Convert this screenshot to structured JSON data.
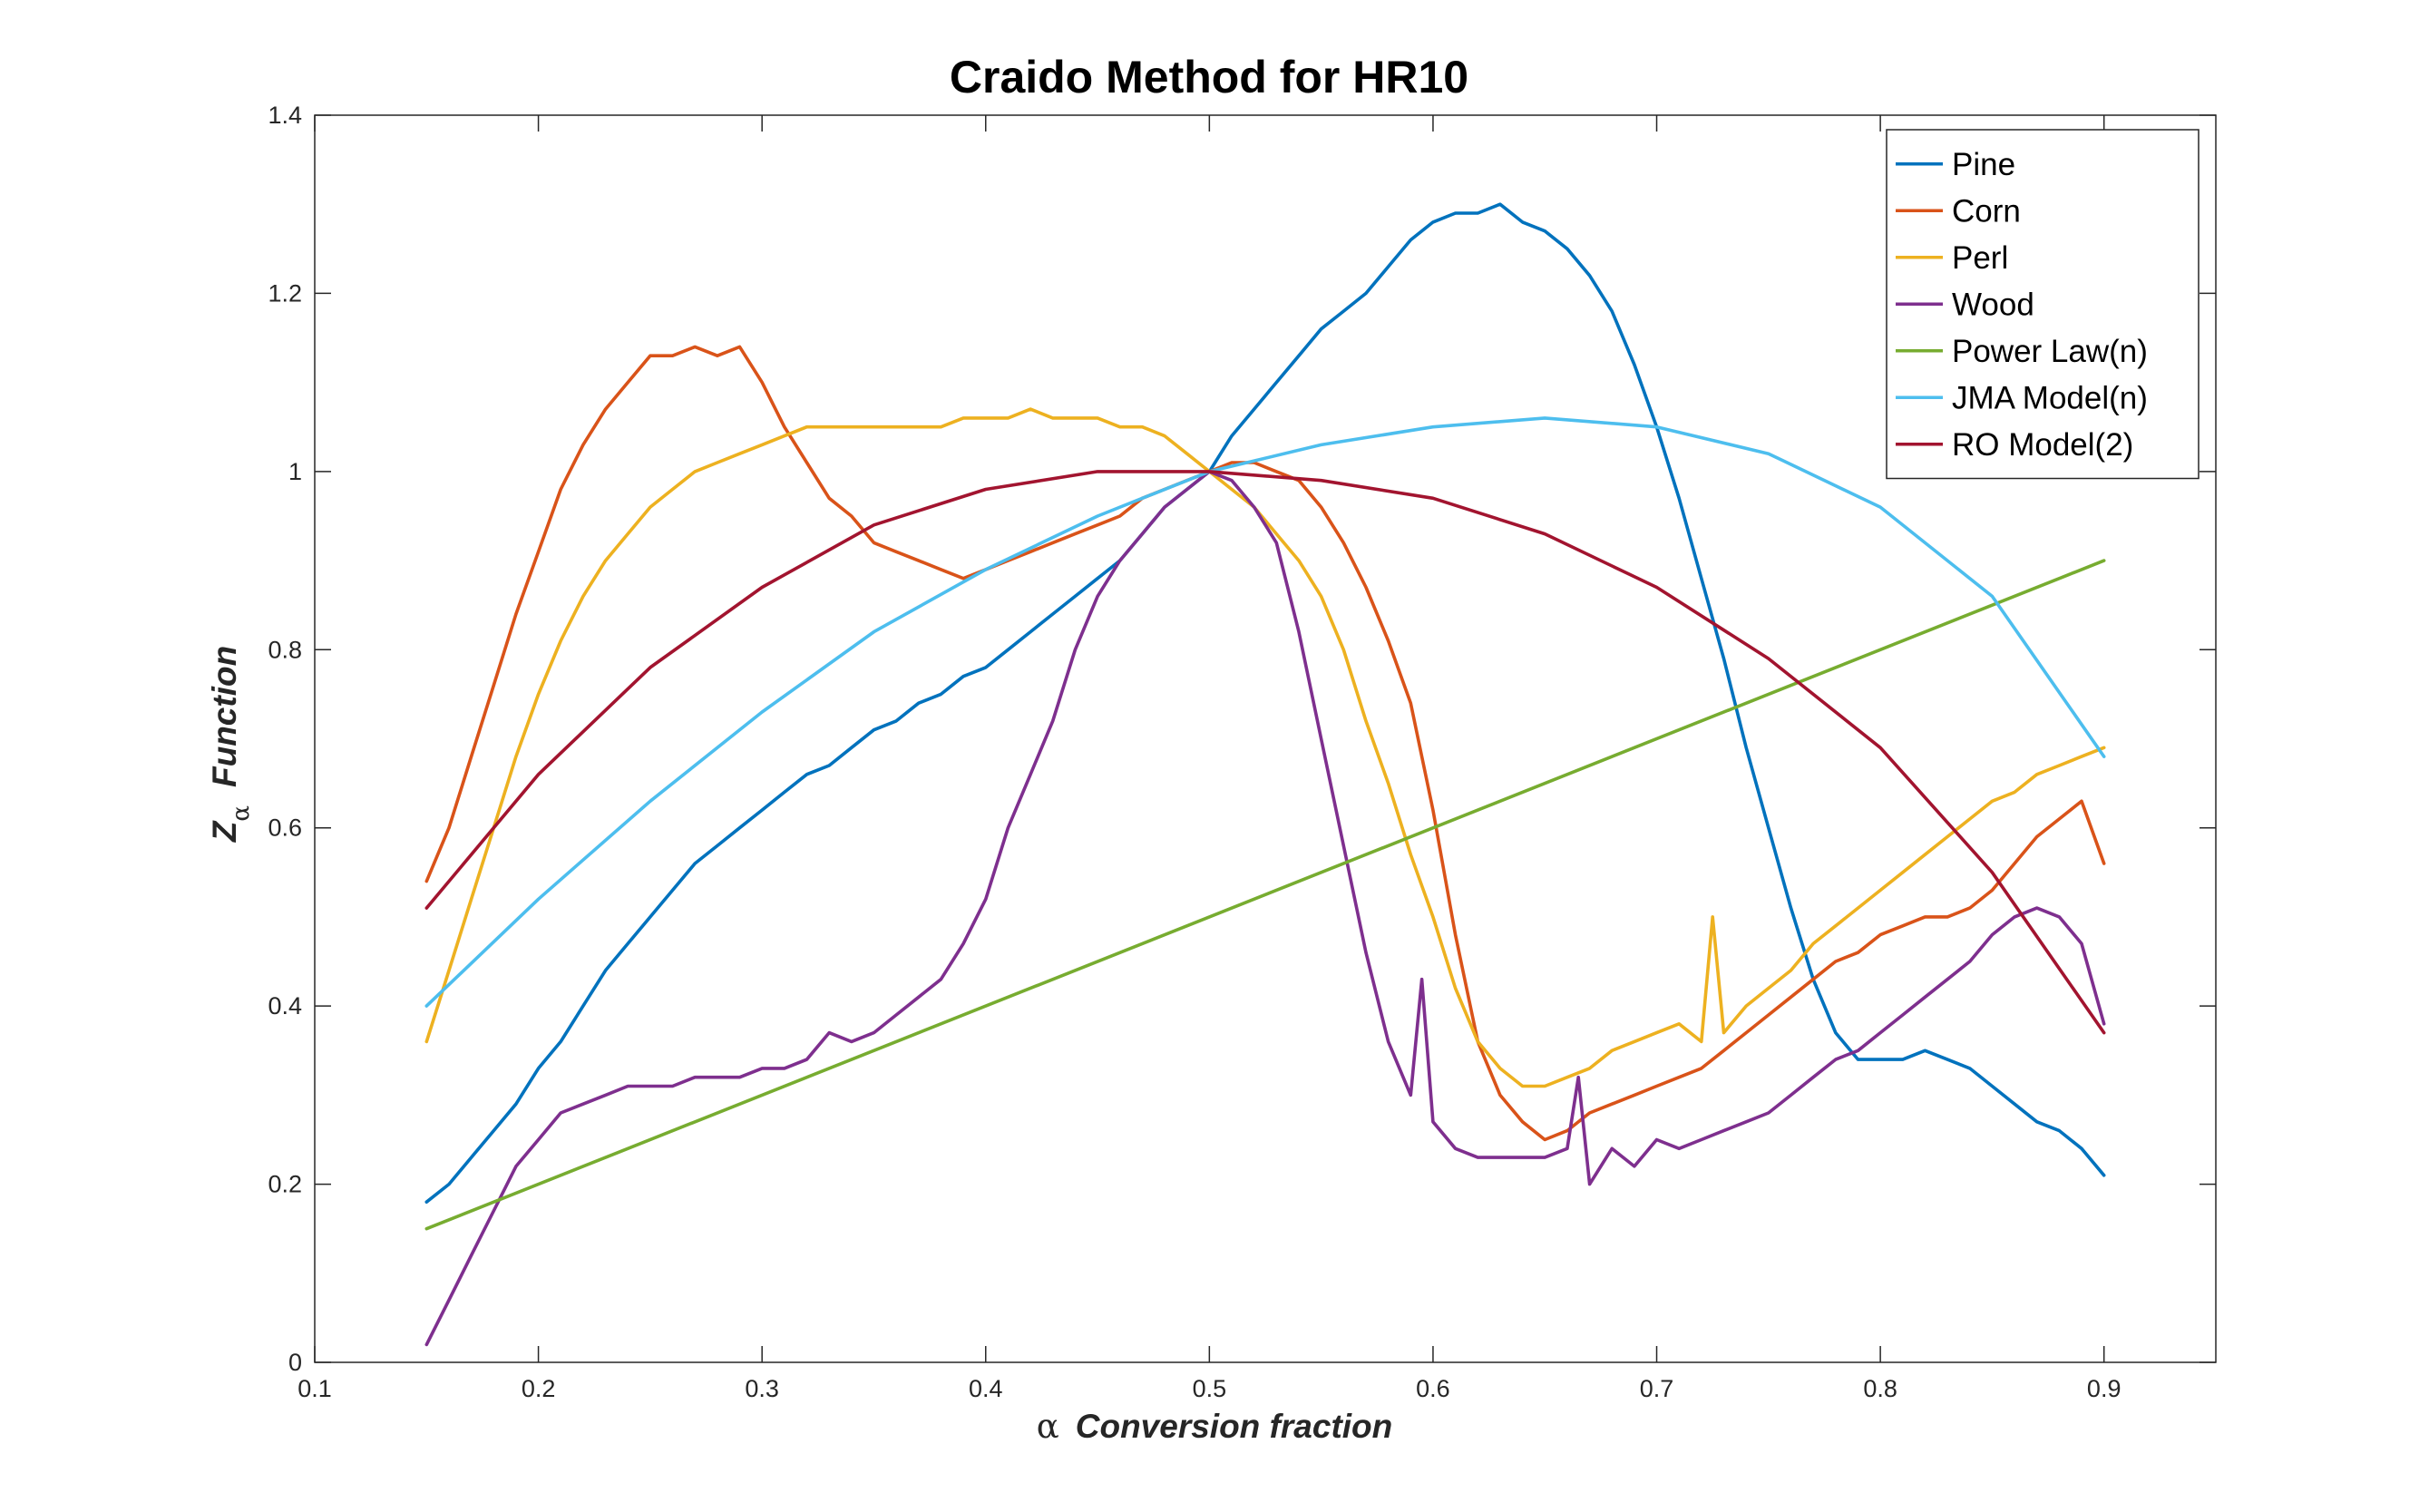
{
  "chart_data": {
    "type": "line",
    "title": "Craido Method for HR10",
    "xlabel": {
      "symbol": "α",
      "text": "Conversion fraction"
    },
    "ylabel": {
      "symbol": "Z",
      "subscript": "α",
      "text": "Function"
    },
    "xlim": [
      0.1,
      0.95
    ],
    "ylim": [
      0,
      1.4
    ],
    "xticks": [
      0.1,
      0.2,
      0.3,
      0.4,
      0.5,
      0.6,
      0.7,
      0.8,
      0.9
    ],
    "xtick_labels": [
      "0.1",
      "0.2",
      "0.3",
      "0.4",
      "0.5",
      "0.6",
      "0.7",
      "0.8",
      "0.9"
    ],
    "yticks": [
      0,
      0.2,
      0.4,
      0.6,
      0.8,
      1,
      1.2,
      1.4
    ],
    "ytick_labels": [
      "0",
      "0.2",
      "0.4",
      "0.6",
      "0.8",
      "1",
      "1.2",
      "1.4"
    ],
    "grid": false,
    "legend_position": "top-right",
    "series": [
      {
        "name": "Pine",
        "color": "#0072BD",
        "x": [
          0.15,
          0.16,
          0.17,
          0.18,
          0.19,
          0.2,
          0.21,
          0.22,
          0.23,
          0.24,
          0.25,
          0.26,
          0.27,
          0.28,
          0.29,
          0.3,
          0.31,
          0.32,
          0.33,
          0.34,
          0.35,
          0.36,
          0.37,
          0.38,
          0.39,
          0.4,
          0.41,
          0.42,
          0.43,
          0.44,
          0.45,
          0.46,
          0.47,
          0.48,
          0.49,
          0.5,
          0.51,
          0.52,
          0.53,
          0.54,
          0.55,
          0.56,
          0.57,
          0.58,
          0.59,
          0.6,
          0.61,
          0.62,
          0.63,
          0.64,
          0.65,
          0.66,
          0.67,
          0.68,
          0.69,
          0.7,
          0.71,
          0.72,
          0.73,
          0.74,
          0.75,
          0.76,
          0.77,
          0.78,
          0.79,
          0.8,
          0.81,
          0.82,
          0.83,
          0.84,
          0.85,
          0.86,
          0.87,
          0.88,
          0.89,
          0.9
        ],
        "y": [
          0.18,
          0.2,
          0.23,
          0.26,
          0.29,
          0.33,
          0.36,
          0.4,
          0.44,
          0.47,
          0.5,
          0.53,
          0.56,
          0.58,
          0.6,
          0.62,
          0.64,
          0.66,
          0.67,
          0.69,
          0.71,
          0.72,
          0.74,
          0.75,
          0.77,
          0.78,
          0.8,
          0.82,
          0.84,
          0.86,
          0.88,
          0.9,
          0.93,
          0.96,
          0.98,
          1.0,
          1.04,
          1.07,
          1.1,
          1.13,
          1.16,
          1.18,
          1.2,
          1.23,
          1.26,
          1.28,
          1.29,
          1.29,
          1.3,
          1.28,
          1.27,
          1.25,
          1.22,
          1.18,
          1.12,
          1.05,
          0.97,
          0.88,
          0.79,
          0.69,
          0.6,
          0.51,
          0.43,
          0.37,
          0.34,
          0.34,
          0.34,
          0.35,
          0.34,
          0.33,
          0.31,
          0.29,
          0.27,
          0.26,
          0.24,
          0.21
        ]
      },
      {
        "name": "Corn",
        "color": "#D95319",
        "x": [
          0.15,
          0.16,
          0.17,
          0.18,
          0.19,
          0.2,
          0.21,
          0.22,
          0.23,
          0.24,
          0.25,
          0.26,
          0.27,
          0.28,
          0.29,
          0.3,
          0.31,
          0.32,
          0.33,
          0.34,
          0.35,
          0.36,
          0.37,
          0.38,
          0.39,
          0.4,
          0.41,
          0.42,
          0.43,
          0.44,
          0.45,
          0.46,
          0.47,
          0.48,
          0.49,
          0.5,
          0.51,
          0.52,
          0.53,
          0.54,
          0.55,
          0.56,
          0.57,
          0.58,
          0.59,
          0.6,
          0.61,
          0.62,
          0.63,
          0.64,
          0.65,
          0.66,
          0.67,
          0.68,
          0.69,
          0.7,
          0.71,
          0.72,
          0.73,
          0.74,
          0.75,
          0.76,
          0.77,
          0.78,
          0.79,
          0.8,
          0.81,
          0.82,
          0.83,
          0.84,
          0.85,
          0.86,
          0.87,
          0.88,
          0.89,
          0.9
        ],
        "y": [
          0.54,
          0.6,
          0.68,
          0.76,
          0.84,
          0.91,
          0.98,
          1.03,
          1.07,
          1.1,
          1.13,
          1.13,
          1.14,
          1.13,
          1.14,
          1.1,
          1.05,
          1.01,
          0.97,
          0.95,
          0.92,
          0.91,
          0.9,
          0.89,
          0.88,
          0.89,
          0.9,
          0.91,
          0.92,
          0.93,
          0.94,
          0.95,
          0.97,
          0.98,
          0.99,
          1.0,
          1.01,
          1.01,
          1.0,
          0.99,
          0.96,
          0.92,
          0.87,
          0.81,
          0.74,
          0.62,
          0.48,
          0.36,
          0.3,
          0.27,
          0.25,
          0.26,
          0.28,
          0.29,
          0.3,
          0.31,
          0.32,
          0.33,
          0.35,
          0.37,
          0.39,
          0.41,
          0.43,
          0.45,
          0.46,
          0.48,
          0.49,
          0.5,
          0.5,
          0.51,
          0.53,
          0.56,
          0.59,
          0.61,
          0.63,
          0.56
        ]
      },
      {
        "name": "Perl",
        "color": "#EDB120",
        "x": [
          0.15,
          0.16,
          0.17,
          0.18,
          0.19,
          0.2,
          0.21,
          0.22,
          0.23,
          0.24,
          0.25,
          0.26,
          0.27,
          0.28,
          0.29,
          0.3,
          0.31,
          0.32,
          0.33,
          0.34,
          0.35,
          0.36,
          0.37,
          0.38,
          0.39,
          0.4,
          0.41,
          0.42,
          0.43,
          0.44,
          0.45,
          0.46,
          0.47,
          0.48,
          0.49,
          0.5,
          0.51,
          0.52,
          0.53,
          0.54,
          0.55,
          0.56,
          0.57,
          0.58,
          0.59,
          0.6,
          0.61,
          0.62,
          0.63,
          0.64,
          0.65,
          0.66,
          0.67,
          0.68,
          0.69,
          0.7,
          0.71,
          0.72,
          0.725,
          0.73,
          0.74,
          0.75,
          0.76,
          0.77,
          0.78,
          0.79,
          0.8,
          0.81,
          0.82,
          0.83,
          0.84,
          0.85,
          0.86,
          0.87,
          0.88,
          0.89,
          0.9
        ],
        "y": [
          0.36,
          0.44,
          0.52,
          0.6,
          0.68,
          0.75,
          0.81,
          0.86,
          0.9,
          0.93,
          0.96,
          0.98,
          1.0,
          1.01,
          1.02,
          1.03,
          1.04,
          1.05,
          1.05,
          1.05,
          1.05,
          1.05,
          1.05,
          1.05,
          1.06,
          1.06,
          1.06,
          1.07,
          1.06,
          1.06,
          1.06,
          1.05,
          1.05,
          1.04,
          1.02,
          1.0,
          0.98,
          0.96,
          0.93,
          0.9,
          0.86,
          0.8,
          0.72,
          0.65,
          0.57,
          0.5,
          0.42,
          0.36,
          0.33,
          0.31,
          0.31,
          0.32,
          0.33,
          0.35,
          0.36,
          0.37,
          0.38,
          0.36,
          0.5,
          0.37,
          0.4,
          0.42,
          0.44,
          0.47,
          0.49,
          0.51,
          0.53,
          0.55,
          0.57,
          0.59,
          0.61,
          0.63,
          0.64,
          0.66,
          0.67,
          0.68,
          0.69
        ]
      },
      {
        "name": "Wood",
        "color": "#7E2F8E",
        "x": [
          0.15,
          0.16,
          0.17,
          0.18,
          0.19,
          0.2,
          0.21,
          0.22,
          0.23,
          0.24,
          0.25,
          0.26,
          0.27,
          0.28,
          0.29,
          0.3,
          0.31,
          0.32,
          0.33,
          0.34,
          0.35,
          0.36,
          0.37,
          0.38,
          0.39,
          0.4,
          0.41,
          0.42,
          0.43,
          0.44,
          0.45,
          0.46,
          0.47,
          0.48,
          0.49,
          0.5,
          0.51,
          0.52,
          0.53,
          0.54,
          0.55,
          0.56,
          0.57,
          0.58,
          0.59,
          0.595,
          0.6,
          0.61,
          0.62,
          0.63,
          0.64,
          0.65,
          0.66,
          0.665,
          0.67,
          0.68,
          0.69,
          0.7,
          0.71,
          0.72,
          0.73,
          0.74,
          0.75,
          0.76,
          0.77,
          0.78,
          0.79,
          0.8,
          0.81,
          0.82,
          0.83,
          0.84,
          0.85,
          0.86,
          0.87,
          0.88,
          0.89,
          0.9
        ],
        "y": [
          0.02,
          0.07,
          0.12,
          0.17,
          0.22,
          0.25,
          0.28,
          0.29,
          0.3,
          0.31,
          0.31,
          0.31,
          0.32,
          0.32,
          0.32,
          0.33,
          0.33,
          0.34,
          0.37,
          0.36,
          0.37,
          0.39,
          0.41,
          0.43,
          0.47,
          0.52,
          0.6,
          0.66,
          0.72,
          0.8,
          0.86,
          0.9,
          0.93,
          0.96,
          0.98,
          1.0,
          0.99,
          0.96,
          0.92,
          0.82,
          0.7,
          0.58,
          0.46,
          0.36,
          0.3,
          0.43,
          0.27,
          0.24,
          0.23,
          0.23,
          0.23,
          0.23,
          0.24,
          0.32,
          0.2,
          0.24,
          0.22,
          0.25,
          0.24,
          0.25,
          0.26,
          0.27,
          0.28,
          0.3,
          0.32,
          0.34,
          0.35,
          0.37,
          0.39,
          0.41,
          0.43,
          0.45,
          0.48,
          0.5,
          0.51,
          0.5,
          0.47,
          0.38
        ]
      },
      {
        "name": "Power Law(n)",
        "color": "#77AC30",
        "x": [
          0.15,
          0.9
        ],
        "y": [
          0.15,
          0.9
        ]
      },
      {
        "name": "JMA Model(n)",
        "color": "#4DBEEE",
        "x": [
          0.15,
          0.2,
          0.25,
          0.3,
          0.35,
          0.4,
          0.45,
          0.5,
          0.55,
          0.6,
          0.65,
          0.7,
          0.75,
          0.8,
          0.85,
          0.9
        ],
        "y": [
          0.4,
          0.52,
          0.63,
          0.73,
          0.82,
          0.89,
          0.95,
          1.0,
          1.03,
          1.05,
          1.06,
          1.05,
          1.02,
          0.96,
          0.86,
          0.68
        ]
      },
      {
        "name": "RO Model(2)",
        "color": "#A2142F",
        "x": [
          0.15,
          0.2,
          0.25,
          0.3,
          0.35,
          0.4,
          0.45,
          0.5,
          0.55,
          0.6,
          0.65,
          0.7,
          0.75,
          0.8,
          0.85,
          0.9
        ],
        "y": [
          0.51,
          0.66,
          0.78,
          0.87,
          0.94,
          0.98,
          1.0,
          1.0,
          0.99,
          0.97,
          0.93,
          0.87,
          0.79,
          0.69,
          0.55,
          0.37
        ]
      }
    ]
  }
}
